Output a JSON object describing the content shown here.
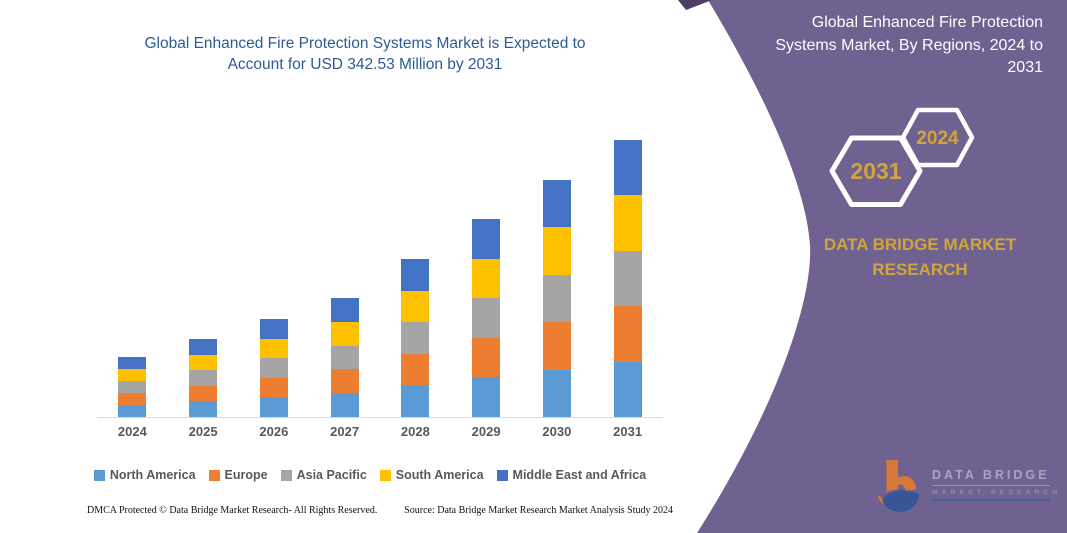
{
  "left_panel": {
    "title_lines": [
      "Global Enhanced Fire Protection Systems Market is Expected to",
      "Account for USD 342.53 Million by 2031"
    ]
  },
  "chart_data": {
    "type": "bar",
    "stacked": true,
    "title": "Global Enhanced Fire Protection Systems Market is Expected to Account for USD 342.53 Million by 2031",
    "unit": "USD Million",
    "categories": [
      "2024",
      "2025",
      "2026",
      "2027",
      "2028",
      "2029",
      "2030",
      "2031"
    ],
    "series": [
      {
        "name": "North America",
        "color": "#5B9BD5",
        "values": [
          14.8,
          19.3,
          24.2,
          29.4,
          39.1,
          49.0,
          58.6,
          68.5
        ]
      },
      {
        "name": "Europe",
        "color": "#ED7D31",
        "values": [
          14.8,
          19.3,
          24.2,
          29.4,
          39.1,
          49.0,
          58.6,
          68.5
        ]
      },
      {
        "name": "Asia Pacific",
        "color": "#A5A5A5",
        "values": [
          14.8,
          19.3,
          24.2,
          29.4,
          39.1,
          49.0,
          58.6,
          68.5
        ]
      },
      {
        "name": "South America",
        "color": "#FFC000",
        "values": [
          14.8,
          19.3,
          24.2,
          29.4,
          39.1,
          49.0,
          58.6,
          68.5
        ]
      },
      {
        "name": "Middle East and Africa",
        "color": "#4472C4",
        "values": [
          14.9,
          19.3,
          24.3,
          29.5,
          39.1,
          49.0,
          58.7,
          68.53
        ]
      }
    ],
    "totals": [
      74.1,
      96.5,
      121.1,
      147.1,
      195.5,
      245.0,
      293.1,
      342.53
    ],
    "ylim": [
      0,
      380
    ],
    "grid": false,
    "axis_line_color": "#D9D9D9",
    "legend_position": "bottom"
  },
  "right_panel": {
    "title_lines": [
      "Global Enhanced Fire Protection",
      "Systems Market, By Regions, 2024 to",
      "2031"
    ],
    "hexagon_large_label": "2031",
    "hexagon_small_label": "2024",
    "brand_lines": [
      "DATA BRIDGE MARKET",
      "RESEARCH"
    ],
    "colors": {
      "panel_purple": "#6F6190",
      "corner_dark_purple": "#4A3E63",
      "gold": "#D2A43D",
      "white": "#FFFFFF"
    }
  },
  "watermark": {
    "brand": "DATA BRIDGE",
    "sub": "MARKET RESEARCH",
    "logo_orange": "#E87D2B",
    "logo_blue": "#2F5596"
  },
  "footer": {
    "dmca": "DMCA Protected © Data Bridge Market Research-  All Rights Reserved.",
    "source": "Source: Data Bridge Market Research  Market Analysis Study 2024"
  },
  "theme": {
    "chart_title_blue": "#2E5B94",
    "axis_text_gray": "#595959"
  }
}
